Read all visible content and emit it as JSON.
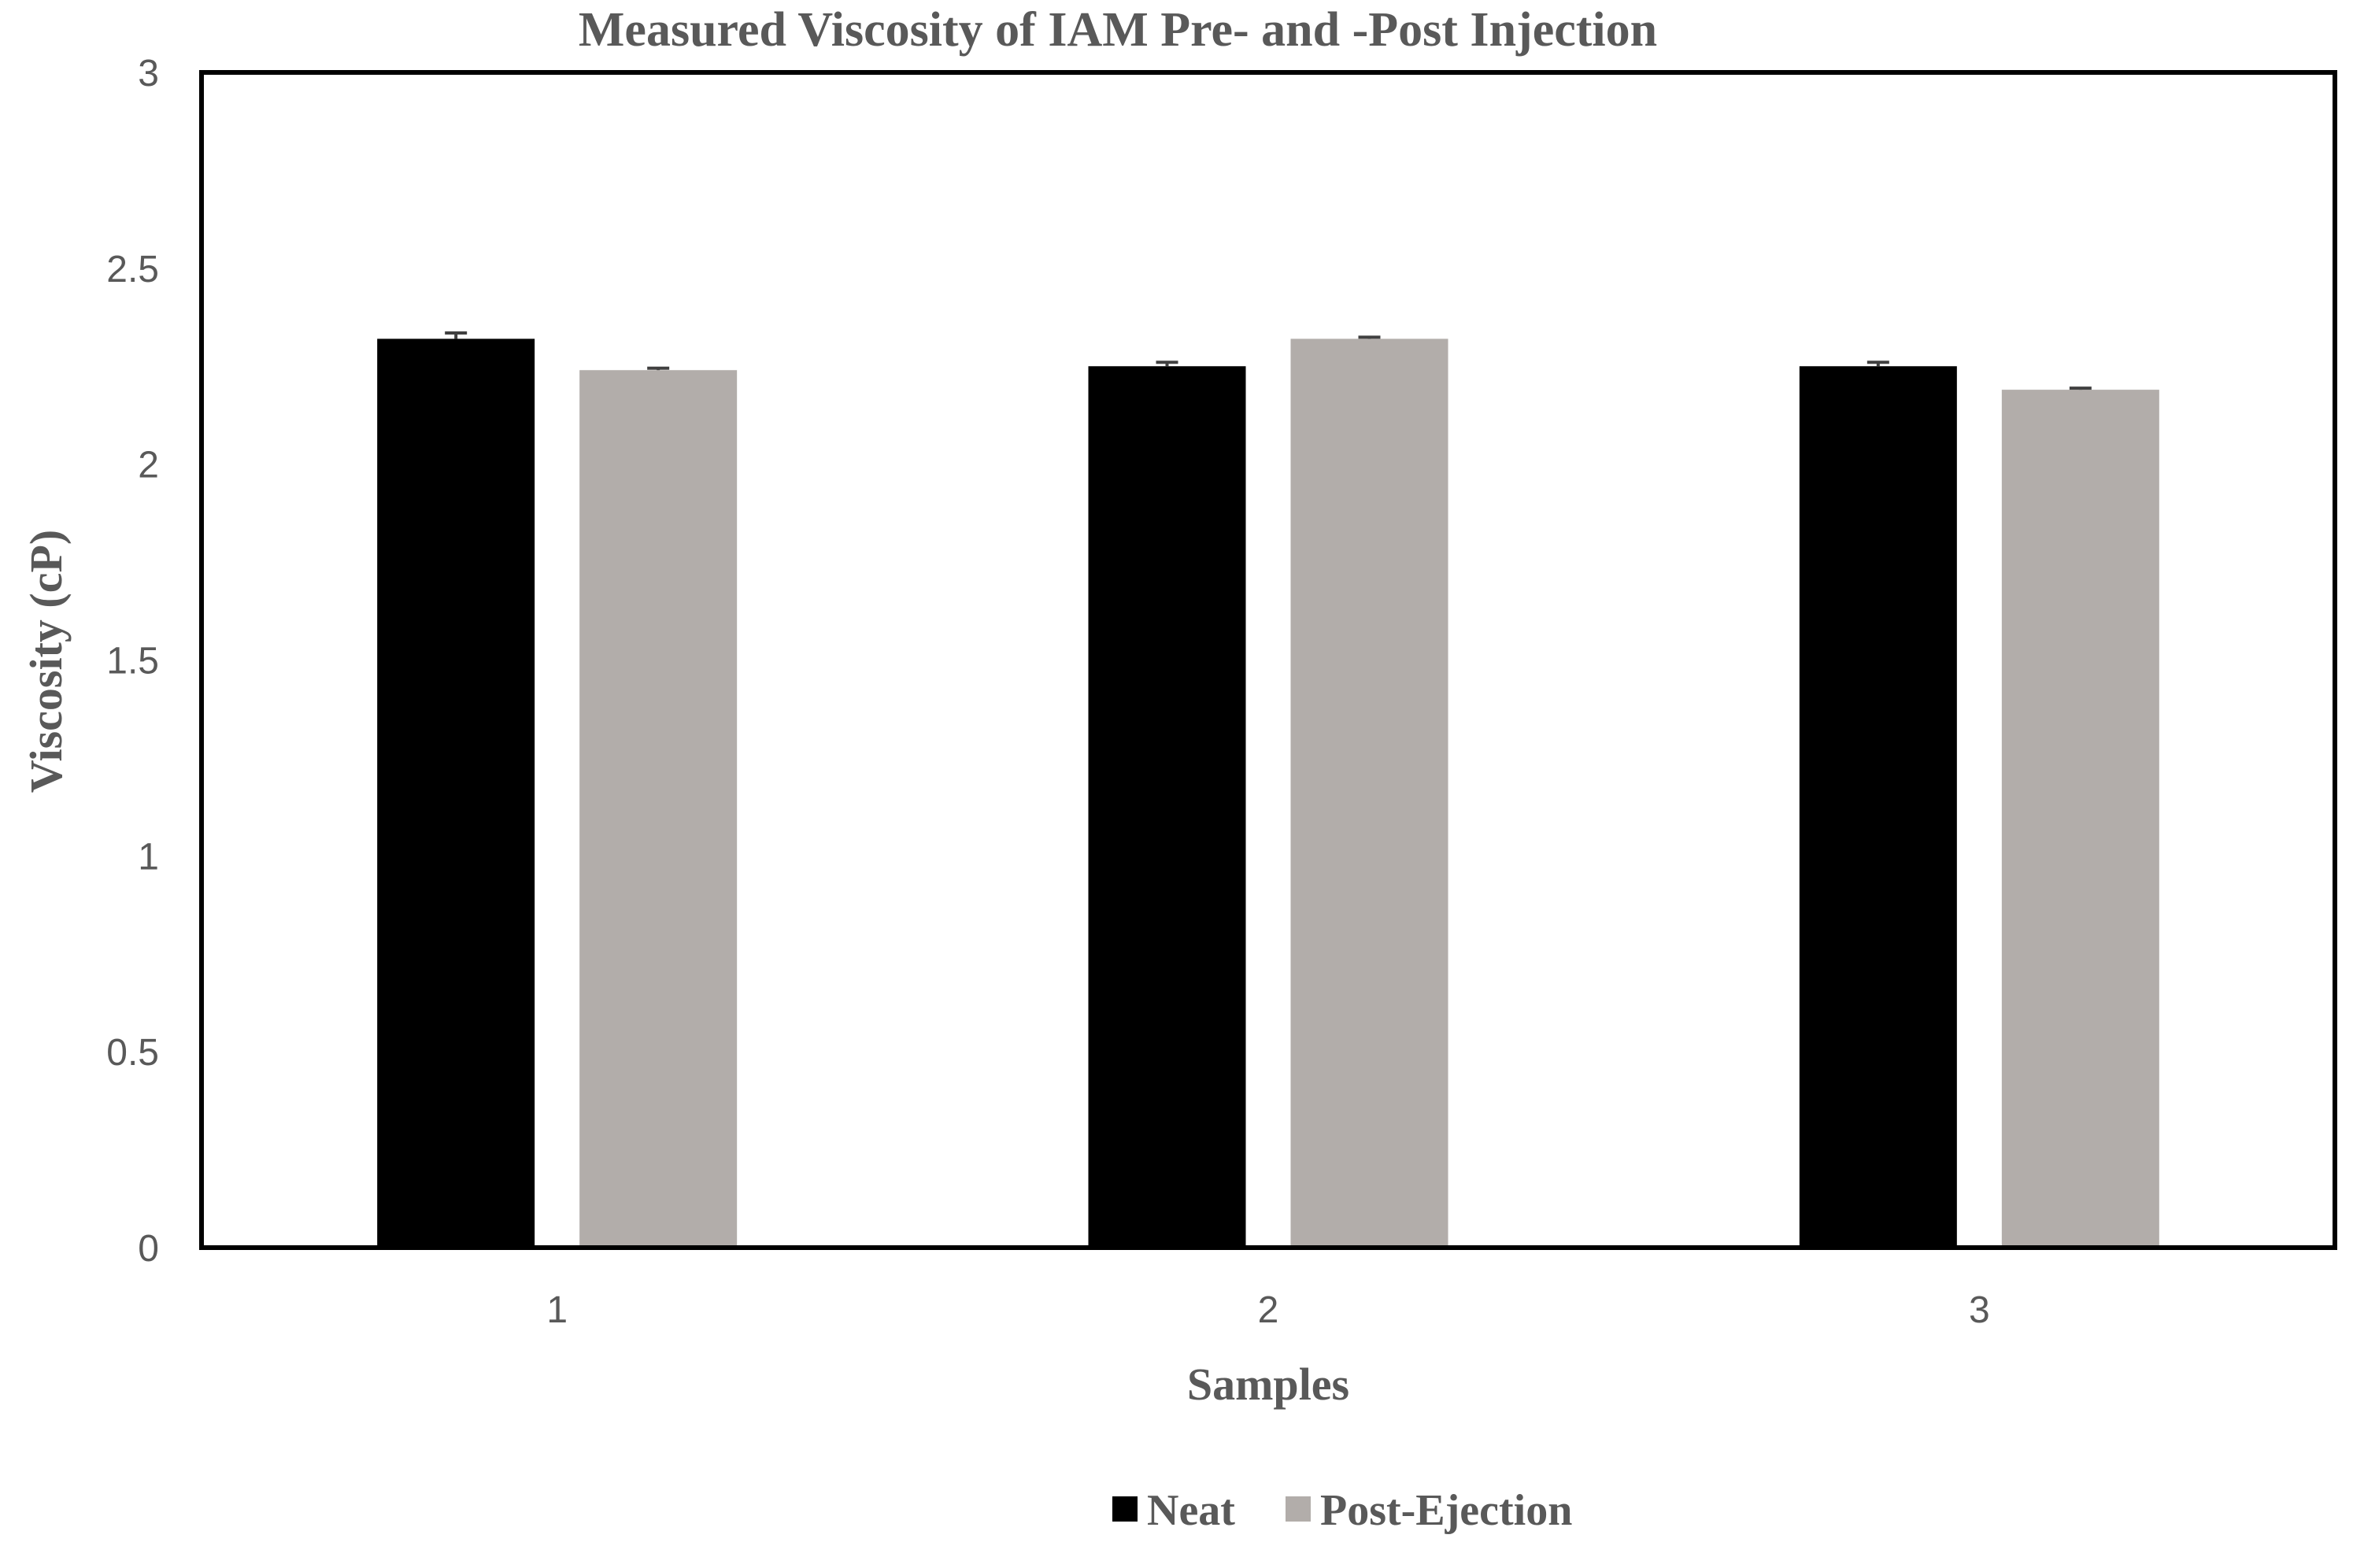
{
  "chart_data": {
    "type": "bar",
    "title": "Measured Viscosity of IAM Pre- and -Post Injection",
    "xlabel": "Samples",
    "ylabel": "Viscosity (cP)",
    "categories": [
      "1",
      "2",
      "3"
    ],
    "ylim": [
      0,
      3
    ],
    "yticks": [
      0,
      0.5,
      1,
      1.5,
      2,
      2.5,
      3
    ],
    "ytick_labels": [
      "0",
      "0.5",
      "1",
      "1.5",
      "2",
      "2.5",
      "3"
    ],
    "grid": false,
    "legend_position": "bottom",
    "series": [
      {
        "name": "Neat",
        "color": "#000000",
        "values": [
          2.32,
          2.25,
          2.25
        ],
        "errors": [
          0.015,
          0.01,
          0.01
        ]
      },
      {
        "name": "Post-Ejection",
        "color": "#b2adaa",
        "values": [
          2.24,
          2.32,
          2.19
        ],
        "errors": [
          0.005,
          0.004,
          0.004
        ]
      }
    ]
  }
}
